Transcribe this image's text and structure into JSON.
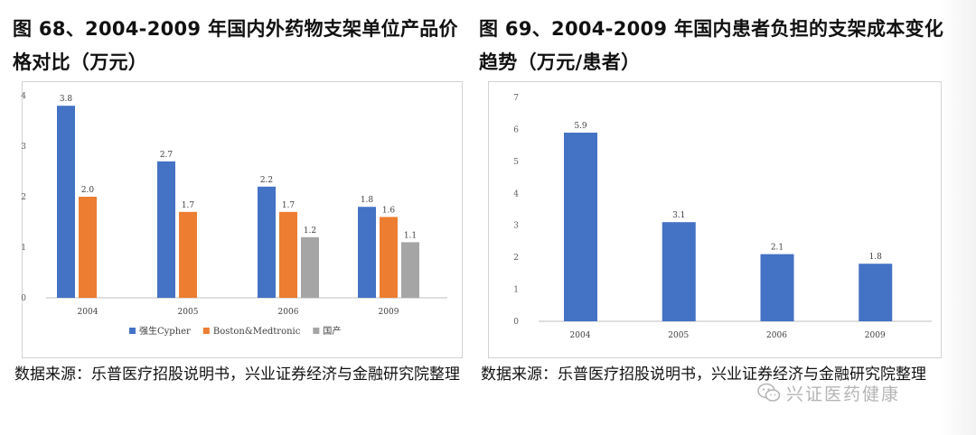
{
  "left": {
    "title": "图 68、2004-2009 年国内外药物支架单位产品价格对比（万元）",
    "source": "数据来源：乐普医疗招股说明书，兴业证券经济与金融研究院整理"
  },
  "right": {
    "title": "图 69、2004-2009 年国内患者负担的支架成本变化趋势（万元/患者）",
    "source": "数据来源：乐普医疗招股说明书，兴业证券经济与金融研究院整理"
  },
  "watermark": {
    "text": "兴证医药健康",
    "icon": "wechat-icon"
  },
  "chart_data": [
    {
      "type": "bar",
      "categories": [
        "2004",
        "2005",
        "2006",
        "2009"
      ],
      "series": [
        {
          "name": "强生Cypher",
          "values": [
            3.8,
            2.7,
            2.2,
            1.8
          ],
          "color": "#4472C4"
        },
        {
          "name": "Boston&Medtronic",
          "values": [
            2.0,
            1.7,
            1.7,
            1.6
          ],
          "color": "#ED7D31"
        },
        {
          "name": "国产",
          "values": [
            null,
            null,
            1.2,
            1.1
          ],
          "color": "#A5A5A5"
        }
      ],
      "data_labels": [
        [
          "3.8",
          "2.7",
          "2.2",
          "1.8"
        ],
        [
          "2.0",
          "1.7",
          "1.7",
          "1.6"
        ],
        [
          "",
          "",
          "1.2",
          "1.1"
        ]
      ],
      "yticks": [
        "0",
        "1",
        "2",
        "3",
        "4"
      ],
      "ylim": [
        0,
        4
      ],
      "grid": false,
      "legend": "bottom"
    },
    {
      "type": "bar",
      "categories": [
        "2004",
        "2005",
        "2006",
        "2009"
      ],
      "series": [
        {
          "values": [
            5.9,
            3.1,
            2.1,
            1.8
          ],
          "color": "#4472C4"
        }
      ],
      "data_labels": [
        [
          "5.9",
          "3.1",
          "2.1",
          "1.8"
        ]
      ],
      "yticks": [
        "0",
        "1",
        "2",
        "3",
        "4",
        "5",
        "6",
        "7"
      ],
      "ylim": [
        0,
        7
      ],
      "grid": false,
      "legend": "none"
    }
  ]
}
